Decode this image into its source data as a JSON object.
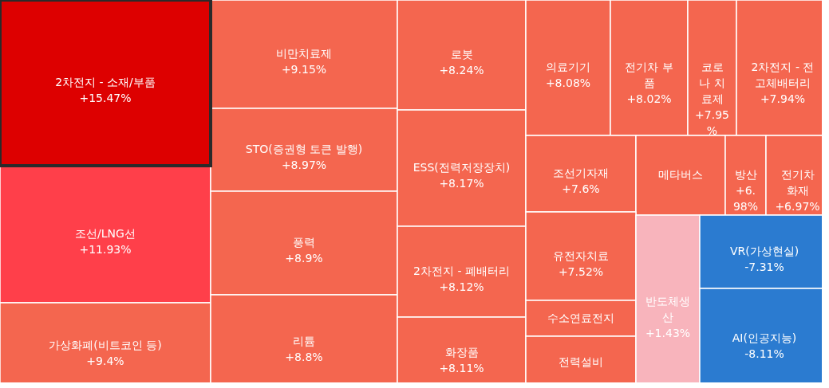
{
  "chart_data": {
    "type": "other",
    "categories": [
      "2차전지 - 소재/부품",
      "조선/LNG선",
      "가상화폐(비트코인 등)",
      "비만치료제",
      "STO(증권형 토큰 발행)",
      "풍력",
      "리튬",
      "로봇",
      "ESS(전력저장장치)",
      "2차전지 - 폐배터리",
      "화장품",
      "의료기기",
      "전기차 부품",
      "코로나 치료제",
      "2차전지 - 전고체배터리",
      "조선기자재",
      "메타버스",
      "방산",
      "전기차 화재",
      "유전자치료",
      "수소연료전지",
      "전력설비",
      "반도체생산",
      "VR(가상현실)",
      "AI(인공지능)"
    ],
    "values": [
      15.47,
      11.93,
      9.4,
      9.15,
      8.97,
      8.9,
      8.8,
      8.24,
      8.17,
      8.12,
      8.11,
      8.08,
      8.02,
      7.95,
      7.94,
      7.6,
      null,
      6.98,
      6.97,
      7.52,
      null,
      null,
      1.43,
      -7.31,
      -8.11
    ],
    "value_labels": [
      "+15.47%",
      "+11.93%",
      "+9.4%",
      "+9.15%",
      "+8.97%",
      "+8.9%",
      "+8.8%",
      "+8.24%",
      "+8.17%",
      "+8.12%",
      "+8.11%",
      "+8.08%",
      "+8.02%",
      "+7.95%",
      "+7.94%",
      "+7.6%",
      null,
      "+6.98%",
      "+6.97%",
      "+7.52%",
      null,
      null,
      "+1.43%",
      "-7.31%",
      "-8.11%"
    ],
    "colors": [
      "#dd0000",
      "#ff3f4a",
      "#f4664f",
      "#f4664f",
      "#f4664f",
      "#f4664f",
      "#f4664f",
      "#f4664f",
      "#f4664f",
      "#f4664f",
      "#f4664f",
      "#f4664f",
      "#f4664f",
      "#f4664f",
      "#f4664f",
      "#f4664f",
      "#f4664f",
      "#f4664f",
      "#f4664f",
      "#f4664f",
      "#f4664f",
      "#f4664f",
      "#f8b4bc",
      "#2b7bd0",
      "#2b7bd0"
    ]
  }
}
